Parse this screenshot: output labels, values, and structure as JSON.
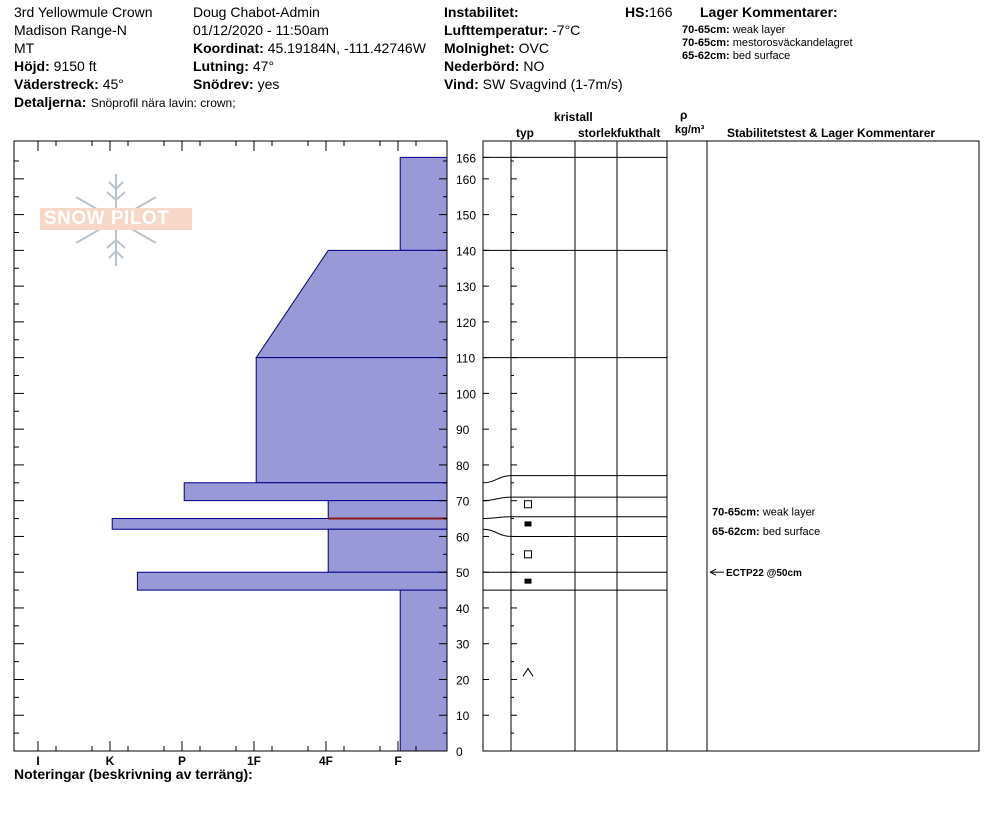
{
  "header": {
    "site_name": "3rd Yellowmule Crown",
    "range": "Madison Range-N",
    "state": "MT",
    "elevation": {
      "label": "Höjd:",
      "value": "9150 ft"
    },
    "aspect": {
      "label": "Väderstreck:",
      "value": "45°"
    },
    "details": {
      "label": "Detaljerna:",
      "value": "Snöprofil nära lavin: crown;"
    },
    "observer": "Doug Chabot-Admin",
    "datetime": "01/12/2020 - 11:50am",
    "coord": {
      "label": "Koordinat:",
      "value": "45.19184N, -111.42746W"
    },
    "slope": {
      "label": "Lutning:",
      "value": "47°"
    },
    "blowing_snow": {
      "label": "Snödrev:",
      "value": "yes"
    },
    "instability": {
      "label": "Instabilitet:",
      "value": ""
    },
    "air_temp": {
      "label": "Lufttemperatur:",
      "value": "-7°C"
    },
    "sky": {
      "label": "Molnighet:",
      "value": "OVC"
    },
    "precip": {
      "label": "Nederbörd:",
      "value": "NO"
    },
    "wind": {
      "label": "Vind:",
      "value": "SW  Svagvind (1-7m/s)"
    },
    "hs": {
      "label": "HS:",
      "value": "166"
    },
    "layer_comments_title": "Lager Kommentarer:",
    "layer_comments": [
      {
        "range": "70-65cm:",
        "text": "weak layer"
      },
      {
        "range": "70-65cm:",
        "text": "mestorosväckandelagret"
      },
      {
        "range": "65-62cm:",
        "text": "bed surface"
      }
    ]
  },
  "logo_text": "SNOW PILOT",
  "columns": {
    "typ": "typ",
    "crystal": "kristall",
    "size": "storlek",
    "moisture": "fukthalt",
    "rho": "ρ",
    "density": "kg/m³",
    "stability": "Stabilitetstest & Lager Kommentarer"
  },
  "footer": "Noteringar (beskrivning av terräng):",
  "colors": {
    "fill": "#9999d8",
    "outline": "#00008b",
    "weak_layer": "#8b1a1a",
    "grid": "#000000"
  },
  "chart_data": {
    "type": "bar",
    "orientation": "horizontal",
    "x_categories": [
      "I",
      "K",
      "P",
      "1F",
      "4F",
      "F"
    ],
    "ylim": [
      0,
      170
    ],
    "ticks": [
      0,
      10,
      20,
      30,
      40,
      50,
      60,
      70,
      80,
      90,
      100,
      110,
      120,
      130,
      140,
      150,
      160,
      166
    ],
    "hardness_layers": [
      {
        "top": 166,
        "bottom": 140,
        "hardness_top": 0.65,
        "hardness_bottom": 0.65
      },
      {
        "top": 140,
        "bottom": 110,
        "hardness_top": 1.65,
        "hardness_bottom": 2.65
      },
      {
        "top": 110,
        "bottom": 75,
        "hardness_top": 2.65,
        "hardness_bottom": 2.65
      },
      {
        "top": 75,
        "bottom": 70,
        "hardness_top": 3.65,
        "hardness_bottom": 3.65
      },
      {
        "top": 70,
        "bottom": 65,
        "hardness_top": 1.65,
        "hardness_bottom": 1.65
      },
      {
        "top": 65,
        "bottom": 62,
        "hardness_top": 4.65,
        "hardness_bottom": 4.65
      },
      {
        "top": 62,
        "bottom": 50,
        "hardness_top": 1.65,
        "hardness_bottom": 1.65
      },
      {
        "top": 50,
        "bottom": 45,
        "hardness_top": 4.3,
        "hardness_bottom": 4.3
      },
      {
        "top": 45,
        "bottom": 0,
        "hardness_top": 0.65,
        "hardness_bottom": 0.65
      }
    ],
    "weak_layer_height": 65,
    "layer_boundaries": [
      166,
      140,
      110,
      77,
      71,
      65.5,
      60,
      50,
      45
    ],
    "boundary_ticks": [
      75,
      70,
      65,
      62,
      50,
      45
    ],
    "grain_symbols": [
      {
        "height": 69,
        "shape": "open-square"
      },
      {
        "height": 63.5,
        "shape": "filled-square"
      },
      {
        "height": 55,
        "shape": "open-square"
      },
      {
        "height": 47.5,
        "shape": "filled-square"
      },
      {
        "height": 22,
        "shape": "caret"
      }
    ],
    "annotations": [
      {
        "height": 67,
        "range": "70-65cm:",
        "text": "weak layer"
      },
      {
        "height": 61.5,
        "range": "65-62cm:",
        "text": "bed surface"
      }
    ],
    "stability_tests": [
      {
        "height": 50,
        "text": "ECTP22 @50cm"
      }
    ]
  }
}
